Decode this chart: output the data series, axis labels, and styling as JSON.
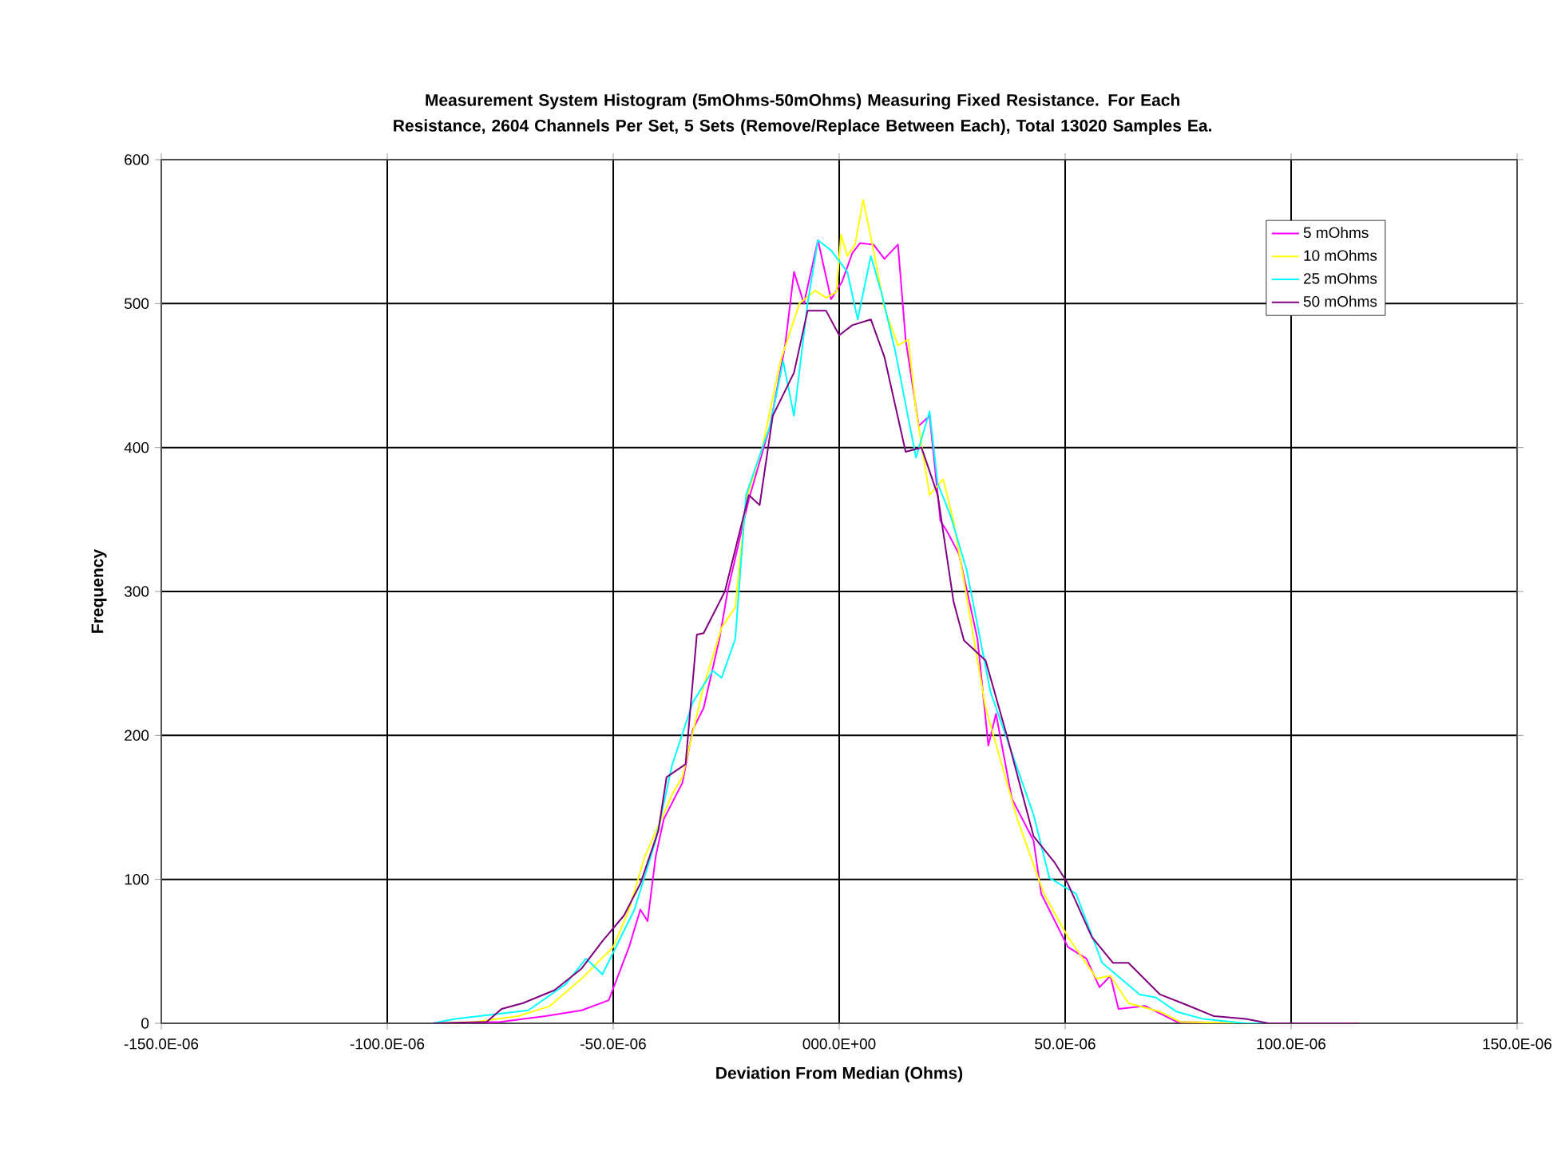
{
  "chart_data": {
    "type": "line",
    "title": "Measurement System Histogram (5mOhms-50mOhms) Measuring Fixed Resistance. For Each Resistance, 2604 Channels Per Set, 5 Sets (Remove/Replace Between Each), Total 13020 Samples Ea.",
    "xlabel": "Deviation From Median (Ohms)",
    "ylabel": "Frequency",
    "xlim": [
      -0.00015,
      0.00015
    ],
    "ylim": [
      0,
      600
    ],
    "xticks": [
      {
        "value": -0.00015,
        "label": "-150.0E-06"
      },
      {
        "value": -0.0001,
        "label": "-100.0E-06"
      },
      {
        "value": -5e-05,
        "label": "-50.0E-06"
      },
      {
        "value": 0,
        "label": "000.0E+00"
      },
      {
        "value": 5e-05,
        "label": "50.0E-06"
      },
      {
        "value": 0.0001,
        "label": "100.0E-06"
      },
      {
        "value": 0.00015,
        "label": "150.0E-06"
      }
    ],
    "yticks": [
      0,
      100,
      200,
      300,
      400,
      500,
      600
    ],
    "grid": true,
    "legend": "top right",
    "marker": "none",
    "line_style": "solid",
    "series": [
      {
        "name": "5 mOhms",
        "color": "#ff00ff",
        "x": [
          -9e-05,
          -7.5e-05,
          -6.5e-05,
          -5.7e-05,
          -5.1e-05,
          -4.65e-05,
          -4.4e-05,
          -4.24e-05,
          -4.06e-05,
          -3.88e-05,
          -3.47e-05,
          -3.24e-05,
          -3e-05,
          -2.65e-05,
          -2.47e-05,
          -2e-05,
          -1.53e-05,
          -1.2e-05,
          -1e-05,
          -7.8e-06,
          -4.7e-06,
          -1.8e-06,
          6e-07,
          2.9e-06,
          4.6e-06,
          7.6e-06,
          1e-05,
          1.3e-05,
          1.47e-05,
          1.76e-05,
          2e-05,
          2.24e-05,
          2.4e-05,
          2.65e-05,
          2.88e-05,
          3.06e-05,
          3.3e-05,
          3.47e-05,
          3.82e-05,
          4.3e-05,
          4.47e-05,
          5.06e-05,
          5.47e-05,
          5.76e-05,
          6e-05,
          6.18e-05,
          6.77e-05,
          7.47e-05,
          9e-05,
          0.000115
        ],
        "values": [
          0,
          1,
          5,
          9,
          16,
          53,
          79,
          71,
          116,
          142,
          167,
          204,
          219,
          267,
          300,
          364,
          415,
          470,
          522,
          500,
          544,
          503,
          515,
          535,
          542,
          541,
          531,
          541,
          475,
          415,
          422,
          349,
          341,
          326,
          293,
          267,
          193,
          215,
          156,
          127,
          90,
          53,
          45,
          25,
          33,
          10,
          12,
          1,
          0,
          0
        ]
      },
      {
        "name": "10 mOhms",
        "color": "#ffff00",
        "x": [
          -9e-05,
          -8.06e-05,
          -7.1e-05,
          -6.4e-05,
          -5.7e-05,
          -5e-05,
          -4.65e-05,
          -4.3e-05,
          -3.68e-05,
          -3.47e-05,
          -3e-05,
          -2.6e-05,
          -2.3e-05,
          -2.06e-05,
          -1.7e-05,
          -1.3e-05,
          -8.8e-06,
          -5.3e-06,
          -2.9e-06,
          -6e-07,
          4e-07,
          1.8e-06,
          3.5e-06,
          5.3e-06,
          7.6e-06,
          1e-05,
          1.3e-05,
          1.53e-05,
          1.7e-05,
          2e-05,
          2.3e-05,
          2.53e-05,
          2.8e-05,
          3.24e-05,
          3.94e-05,
          4.53e-05,
          5.06e-05,
          5.7e-05,
          6e-05,
          6.4e-05,
          7.1e-05,
          7.55e-05,
          9e-05,
          0.00011
        ],
        "values": [
          0,
          1,
          5,
          12,
          31,
          53,
          79,
          116,
          160,
          171,
          234,
          275,
          289,
          364,
          400,
          460,
          500,
          509,
          504,
          508,
          548,
          533,
          541,
          572,
          537,
          497,
          471,
          475,
          426,
          367,
          378,
          349,
          300,
          219,
          142,
          90,
          60,
          31,
          33,
          14,
          8,
          1,
          0,
          0
        ]
      },
      {
        "name": "25 mOhms",
        "color": "#00ffff",
        "x": [
          -9e-05,
          -8.5e-05,
          -6.88e-05,
          -6.06e-05,
          -5.6e-05,
          -5.24e-05,
          -4.53e-05,
          -4.06e-05,
          -3.7e-05,
          -3.24e-05,
          -2.8e-05,
          -2.6e-05,
          -2.3e-05,
          -2.06e-05,
          -1.82e-05,
          -1.53e-05,
          -1.24e-05,
          -1e-05,
          -7e-06,
          -4.7e-06,
          -1.8e-06,
          1.8e-06,
          4.1e-06,
          7e-06,
          9.4e-06,
          1.24e-05,
          1.7e-05,
          2e-05,
          2.18e-05,
          2.47e-05,
          2.82e-05,
          3.35e-05,
          4.3e-05,
          4.65e-05,
          5.24e-05,
          5.82e-05,
          6.65e-05,
          7e-05,
          7.47e-05,
          8.06e-05,
          9e-05,
          0.00011
        ],
        "values": [
          0,
          3,
          9,
          27,
          45,
          34,
          79,
          127,
          179,
          223,
          245,
          240,
          267,
          367,
          389,
          415,
          460,
          422,
          500,
          544,
          537,
          522,
          489,
          533,
          507,
          467,
          393,
          425,
          375,
          352,
          315,
          230,
          145,
          101,
          90,
          42,
          20,
          18,
          8,
          3,
          0,
          0
        ]
      },
      {
        "name": "50 mOhms",
        "color": "#800080",
        "x": [
          -9e-05,
          -7.8e-05,
          -7.47e-05,
          -7e-05,
          -6.3e-05,
          -5.7e-05,
          -5.24e-05,
          -4.76e-05,
          -4.4e-05,
          -4e-05,
          -3.82e-05,
          -3.4e-05,
          -3.15e-05,
          -3e-05,
          -2.53e-05,
          -2e-05,
          -1.76e-05,
          -1.47e-05,
          -1e-05,
          -7e-06,
          -2.9e-06,
          0,
          2.9e-06,
          7e-06,
          1e-05,
          1.47e-05,
          1.82e-05,
          2.18e-05,
          2.53e-05,
          2.76e-05,
          3.24e-05,
          3.7e-05,
          4.3e-05,
          4.76e-05,
          5.06e-05,
          5.59e-05,
          6.06e-05,
          6.4e-05,
          7.1e-05,
          7.59e-05,
          8.29e-05,
          9e-05,
          9.5e-05,
          0.000115
        ],
        "values": [
          0,
          1,
          10,
          14,
          23,
          38,
          57,
          75,
          97,
          134,
          171,
          180,
          270,
          271,
          300,
          367,
          360,
          422,
          452,
          495,
          495,
          478,
          485,
          489,
          463,
          397,
          400,
          367,
          293,
          266,
          252,
          201,
          130,
          112,
          97,
          60,
          42,
          42,
          20,
          14,
          5,
          3,
          0,
          0
        ]
      }
    ]
  }
}
